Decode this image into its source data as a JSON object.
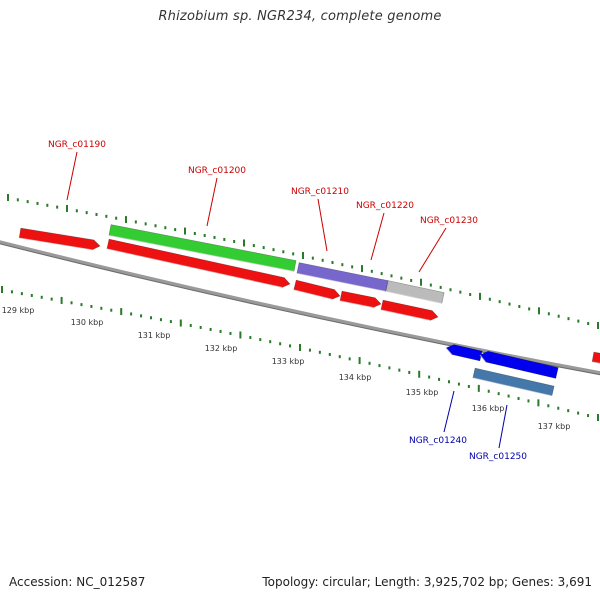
{
  "title": "Rhizobium sp. NGR234, complete genome",
  "footer": {
    "accession": "Accession: NC_012587",
    "summary": "Topology: circular; Length: 3,925,702 bp; Genes: 3,691"
  },
  "colors": {
    "backbone": "#808080",
    "tick": "#2a7a2a",
    "forward_gene": "#ee1111",
    "reverse_gene": "#0000ee",
    "highlight_green": "#33cc33",
    "highlight_purple": "#7766cc",
    "highlight_gray": "#bbbbbb",
    "highlight_steelblue": "#4477aa",
    "label_forward": "#cc0000",
    "label_reverse": "#0000aa"
  },
  "scale": {
    "unit": "kbp",
    "tick_labels": [
      "129 kbp",
      "130 kbp",
      "131 kbp",
      "132 kbp",
      "133 kbp",
      "134 kbp",
      "135 kbp",
      "136 kbp",
      "137 kbp"
    ]
  },
  "genes": [
    {
      "id": "g1",
      "strand": "forward",
      "color_key": "forward_gene",
      "label": ""
    },
    {
      "id": "g2",
      "strand": "forward",
      "color_key": "forward_gene",
      "label": "NGR_c01190"
    },
    {
      "id": "g3",
      "strand": "forward",
      "color_key": "forward_gene",
      "label": "NGR_c01200"
    },
    {
      "id": "g4",
      "strand": "forward",
      "color_key": "forward_gene",
      "label": ""
    },
    {
      "id": "g5",
      "strand": "forward",
      "color_key": "forward_gene",
      "label": ""
    },
    {
      "id": "g6",
      "strand": "forward",
      "color_key": "forward_gene",
      "label": ""
    },
    {
      "id": "g7",
      "strand": "reverse",
      "color_key": "reverse_gene",
      "label": ""
    },
    {
      "id": "g8",
      "strand": "reverse",
      "color_key": "reverse_gene",
      "label": ""
    }
  ],
  "features": [
    {
      "id": "f1",
      "color_key": "highlight_green",
      "label": "NGR_c01200"
    },
    {
      "id": "f2",
      "color_key": "highlight_purple",
      "label": "NGR_c01210"
    },
    {
      "id": "f3",
      "color_key": "highlight_gray",
      "label": "NGR_c01220"
    },
    {
      "id": "f4",
      "color_key": "highlight_steelblue",
      "label": "NGR_c01250"
    }
  ],
  "gene_labels": [
    {
      "text": "NGR_c01190",
      "strand": "forward"
    },
    {
      "text": "NGR_c01200",
      "strand": "forward"
    },
    {
      "text": "NGR_c01210",
      "strand": "forward"
    },
    {
      "text": "NGR_c01220",
      "strand": "forward"
    },
    {
      "text": "NGR_c01230",
      "strand": "forward"
    },
    {
      "text": "NGR_c01240",
      "strand": "reverse"
    },
    {
      "text": "NGR_c01250",
      "strand": "reverse"
    }
  ]
}
